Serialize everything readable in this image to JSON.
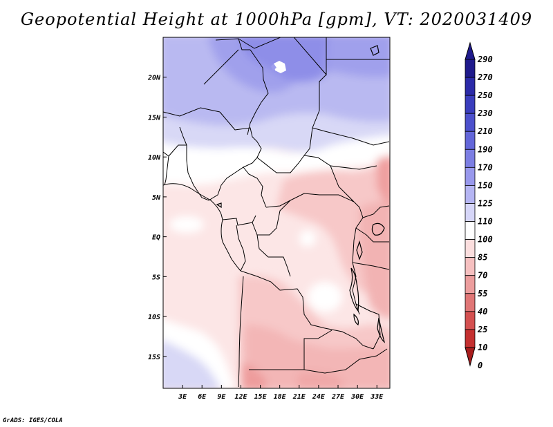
{
  "title": "Geopotential Height at 1000hPa [gpm], VT: 2020031409",
  "credit": "GrADS: IGES/COLA",
  "map": {
    "variable": "Geopotential Height",
    "level": "1000hPa",
    "units": "gpm",
    "valid_time": "2020031409",
    "lon_range": [
      0,
      35
    ],
    "lat_range": [
      -19,
      25
    ],
    "lon_ticks": [
      "3E",
      "6E",
      "9E",
      "12E",
      "15E",
      "18E",
      "21E",
      "24E",
      "27E",
      "30E",
      "33E"
    ],
    "lon_tick_values": [
      3,
      6,
      9,
      12,
      15,
      18,
      21,
      24,
      27,
      30,
      33
    ],
    "lat_ticks": [
      "20N",
      "15N",
      "10N",
      "5N",
      "EQ",
      "5S",
      "10S",
      "15S"
    ],
    "lat_tick_values": [
      20,
      15,
      10,
      5,
      0,
      -5,
      -10,
      -15
    ]
  },
  "colorbar": {
    "levels": [
      "290",
      "270",
      "250",
      "230",
      "210",
      "190",
      "170",
      "150",
      "125",
      "110",
      "100",
      "85",
      "70",
      "55",
      "40",
      "25",
      "10",
      "0"
    ],
    "colors": [
      "#1f1a8c",
      "#2b2aa8",
      "#3a3dbd",
      "#4c50cc",
      "#6366d9",
      "#7c7ee3",
      "#9898ec",
      "#b5b5f3",
      "#d6d6f8",
      "#ffffff",
      "#fbdede",
      "#f6c0c0",
      "#ec9d9d",
      "#e07676",
      "#d45050",
      "#c43030",
      "#a81c1c"
    ]
  }
}
